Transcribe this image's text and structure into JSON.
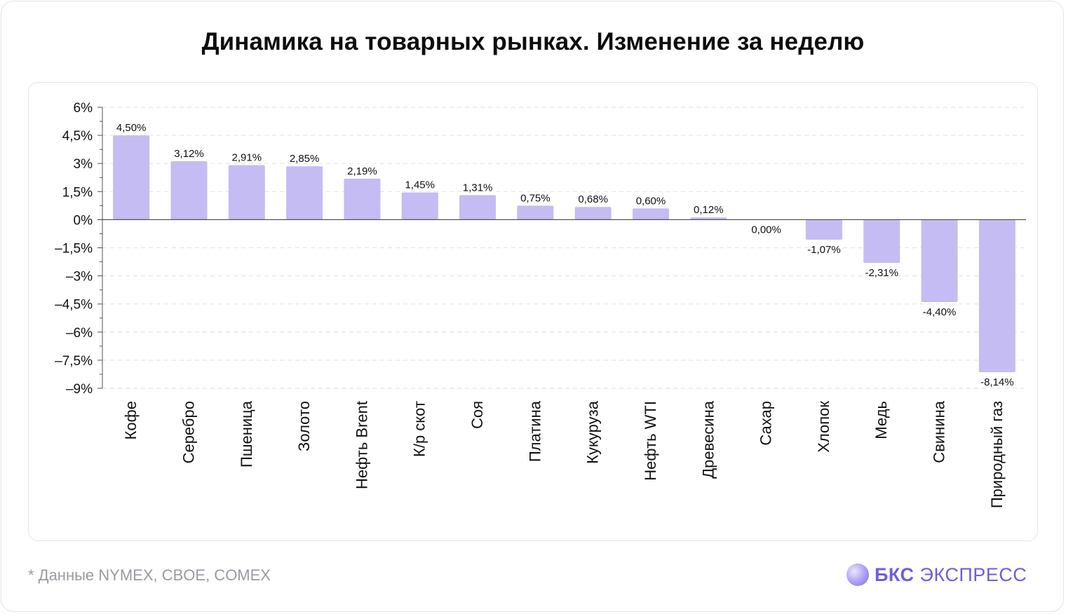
{
  "title": "Динамика на товарных рынках. Изменение за неделю",
  "footnote": "* Данные NYMEX, CBOE, COMEX",
  "logo": {
    "brand": "БКС",
    "product": "ЭКСПРЕСС"
  },
  "colors": {
    "bar": "#c5bcf3",
    "accent": "#6f5fd8",
    "grid": "#e2e2e6",
    "axis": "#555555"
  },
  "chart_data": {
    "type": "bar",
    "title": "Динамика на товарных рынках. Изменение за неделю",
    "xlabel": "",
    "ylabel": "",
    "ylim": [
      -9,
      6
    ],
    "yticks": [
      6,
      4.5,
      3,
      1.5,
      0,
      -1.5,
      -3,
      -4.5,
      -6,
      -7.5,
      -9
    ],
    "ytick_labels": [
      "6%",
      "4,5%",
      "3%",
      "1,5%",
      "0%",
      "–1,5%",
      "–3%",
      "–4,5%",
      "–6%",
      "–7,5%",
      "–9%"
    ],
    "grid": "horizontal dashed",
    "legend": "none",
    "categories": [
      "Кофе",
      "Серебро",
      "Пшеница",
      "Золото",
      "Нефть Brent",
      "К/р скот",
      "Соя",
      "Платина",
      "Кукуруза",
      "Нефть WTI",
      "Древесина",
      "Сахар",
      "Хлопок",
      "Медь",
      "Свинина",
      "Природный газ"
    ],
    "values": [
      4.5,
      3.12,
      2.91,
      2.85,
      2.19,
      1.45,
      1.31,
      0.75,
      0.68,
      0.6,
      0.12,
      0.0,
      -1.07,
      -2.31,
      -4.4,
      -8.14
    ],
    "value_labels": [
      "4,50%",
      "3,12%",
      "2,91%",
      "2,85%",
      "2,19%",
      "1,45%",
      "1,31%",
      "0,75%",
      "0,68%",
      "0,60%",
      "0,12%",
      "0,00%",
      "-1,07%",
      "-2,31%",
      "-4,40%",
      "-8,14%"
    ]
  }
}
